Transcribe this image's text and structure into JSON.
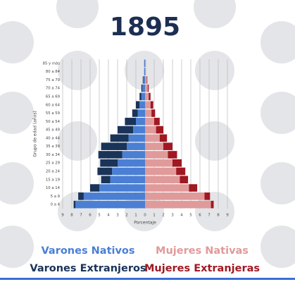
{
  "chart_data": {
    "type": "pyramid",
    "title": "1895",
    "x_label": "Porcentaje",
    "y_label": "Grupo de edad (años)",
    "categories": [
      "0 a 4",
      "5 a 9",
      "10 a 14",
      "15 a 19",
      "20 a 24",
      "25 a 29",
      "30 a 34",
      "35 a 39",
      "40 a 44",
      "45 a 49",
      "50 a 54",
      "55 a 59",
      "60 a 64",
      "65 a 69",
      "70 a 74",
      "75 a 79",
      "80 a 84",
      "85 y más"
    ],
    "series": [
      {
        "name": "Varones Nativos",
        "color": "#4a7fd4",
        "side": "left",
        "values": [
          7.6,
          6.7,
          5.0,
          3.8,
          3.6,
          3.0,
          2.5,
          2.0,
          1.8,
          1.3,
          1.0,
          0.8,
          0.6,
          0.4,
          0.3,
          0.2,
          0.1,
          0.1
        ]
      },
      {
        "name": "Varones Extranjeros",
        "color": "#1a3358",
        "side": "left",
        "values": [
          0.2,
          0.6,
          1.0,
          1.0,
          1.6,
          1.9,
          2.6,
          2.8,
          2.0,
          1.7,
          1.2,
          0.6,
          0.4,
          0.2,
          0.1,
          0.05,
          0,
          0
        ]
      },
      {
        "name": "Mujeres Nativas",
        "color": "#e09a9a",
        "side": "right",
        "values": [
          7.2,
          6.5,
          4.8,
          3.8,
          3.4,
          3.0,
          2.5,
          2.0,
          1.6,
          1.2,
          1.0,
          0.7,
          0.6,
          0.4,
          0.3,
          0.2,
          0.1,
          0.1
        ]
      },
      {
        "name": "Mujeres Extranjeras",
        "color": "#a01822",
        "side": "right",
        "values": [
          0.3,
          0.6,
          0.9,
          0.9,
          1.0,
          1.0,
          1.0,
          1.0,
          0.8,
          0.8,
          0.6,
          0.4,
          0.3,
          0.2,
          0.1,
          0.05,
          0,
          0
        ]
      }
    ],
    "xlim": [
      -9,
      9
    ],
    "xticks": [
      {
        "value": -9,
        "label": "9"
      },
      {
        "value": -8,
        "label": "8"
      },
      {
        "value": -7,
        "label": "7"
      },
      {
        "value": -6,
        "label": "6"
      },
      {
        "value": -5,
        "label": "5"
      },
      {
        "value": -4,
        "label": "4"
      },
      {
        "value": -3,
        "label": "3"
      },
      {
        "value": -2,
        "label": "2"
      },
      {
        "value": -1,
        "label": "1"
      },
      0,
      1,
      2,
      3,
      4,
      5,
      6,
      7,
      8,
      9
    ],
    "grid": true
  }
}
